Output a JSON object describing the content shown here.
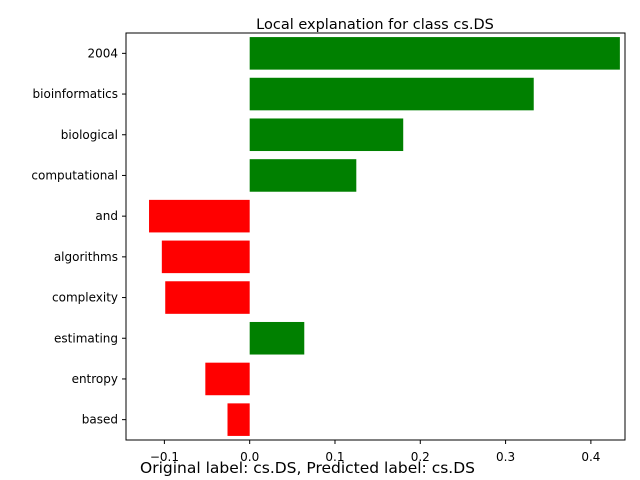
{
  "chart_data": {
    "type": "bar",
    "orientation": "horizontal",
    "title": "Local explanation for class cs.DS",
    "xlabel": "",
    "ylabel": "",
    "xlim": [
      -0.145,
      0.44
    ],
    "xticks": [
      -0.1,
      0.0,
      0.1,
      0.2,
      0.3,
      0.4
    ],
    "xtick_labels": [
      "−0.1",
      "0.0",
      "0.1",
      "0.2",
      "0.3",
      "0.4"
    ],
    "categories": [
      "2004",
      "bioinformatics",
      "biological",
      "computational",
      "and",
      "algorithms",
      "complexity",
      "estimating",
      "entropy",
      "based"
    ],
    "values": [
      0.434,
      0.333,
      0.18,
      0.125,
      -0.118,
      -0.103,
      -0.099,
      0.064,
      -0.052,
      -0.026
    ],
    "colors": {
      "positive": "#008000",
      "negative": "#ff0000"
    },
    "grid": false,
    "legend": "none"
  },
  "caption": "Original label: cs.DS, Predicted label: cs.DS"
}
